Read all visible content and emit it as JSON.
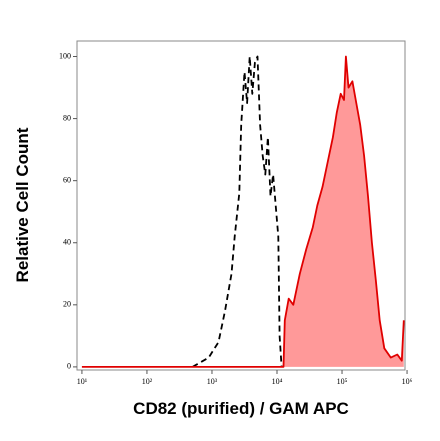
{
  "chart_data": {
    "type": "line",
    "xlabel": "CD82 (purified) / GAM APC",
    "ylabel": "Relative Cell Count",
    "xscale": "log",
    "xlim": [
      8.4,
      930000
    ],
    "ylim": [
      -1,
      105
    ],
    "xticks": [
      {
        "value": 10,
        "label": "10¹"
      },
      {
        "value": 100,
        "label": "10²"
      },
      {
        "value": 1000,
        "label": "10³"
      },
      {
        "value": 10000,
        "label": "10⁴"
      },
      {
        "value": 100000,
        "label": "10⁵"
      },
      {
        "value": 1000000,
        "label": "10⁶"
      }
    ],
    "yticks": [
      0,
      20,
      40,
      60,
      80,
      100
    ],
    "series": [
      {
        "color": "#000000",
        "style": "dashed",
        "x": [
          501,
          891,
          1259,
          1585,
          1995,
          2239,
          2630,
          2818,
          3162,
          3467,
          3802,
          4169,
          4571,
          5012,
          5495,
          6026,
          6607,
          7244,
          7943,
          8710,
          9550,
          10471,
          10965,
          11749
        ],
        "values": [
          0,
          3,
          8,
          18,
          30,
          42,
          56,
          78,
          95,
          85,
          100,
          88,
          98,
          100,
          78,
          68,
          62,
          74,
          55,
          62,
          52,
          42,
          10,
          0
        ]
      },
      {
        "color": "#e00000",
        "fill": "#ff9999",
        "style": "solid",
        "x": [
          10,
          10000,
          12589,
          13183,
          15136,
          17783,
          22387,
          28184,
          35481,
          41687,
          50119,
          60256,
          72444,
          83176,
          95499,
          107152,
          114815,
          125893,
          144544,
          165959,
          190546,
          218776,
          251189,
          288403,
          331131,
          380189,
          446684,
          562341,
          707946,
          831764,
          891251
        ],
        "values": [
          0,
          0,
          0,
          15,
          22,
          20,
          30,
          38,
          45,
          52,
          58,
          66,
          74,
          82,
          88,
          86,
          100,
          90,
          92,
          85,
          78,
          68,
          55,
          40,
          28,
          15,
          6,
          3,
          4,
          2,
          15
        ]
      }
    ]
  }
}
